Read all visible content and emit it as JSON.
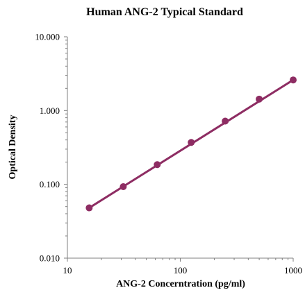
{
  "chart_data": {
    "type": "line",
    "title": "Human ANG-2 Typical Standard",
    "xlabel": "ANG-2 Concerntration (pg/ml)",
    "ylabel": "Optical Density",
    "x_scale": "log",
    "y_scale": "log",
    "xlim": [
      10,
      1000
    ],
    "ylim": [
      0.01,
      10
    ],
    "x_ticks": [
      {
        "value": 10,
        "label": "10"
      },
      {
        "value": 100,
        "label": "100"
      },
      {
        "value": 1000,
        "label": "1000"
      }
    ],
    "y_ticks": [
      {
        "value": 10,
        "label": "10.000"
      },
      {
        "value": 1,
        "label": "1.000"
      },
      {
        "value": 0.1,
        "label": "0.100"
      },
      {
        "value": 0.01,
        "label": "0.010"
      }
    ],
    "grid": false,
    "legend": "none",
    "series": [
      {
        "color": "#8E2D63",
        "points": [
          {
            "x": 15.6,
            "y": 0.048
          },
          {
            "x": 31.25,
            "y": 0.093
          },
          {
            "x": 62.5,
            "y": 0.185
          },
          {
            "x": 125,
            "y": 0.37
          },
          {
            "x": 250,
            "y": 0.72
          },
          {
            "x": 500,
            "y": 1.43
          },
          {
            "x": 1000,
            "y": 2.6
          }
        ]
      }
    ]
  }
}
